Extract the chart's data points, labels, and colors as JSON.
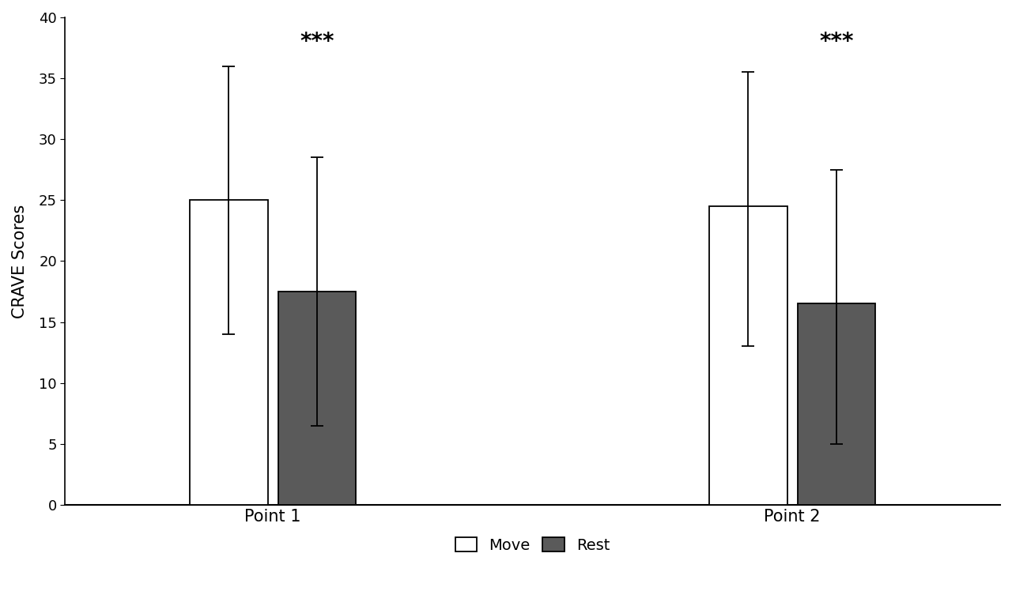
{
  "groups": [
    "Point 1",
    "Point 2"
  ],
  "move_values": [
    25.0,
    24.5
  ],
  "rest_values": [
    17.5,
    16.5
  ],
  "move_err_low": [
    11.0,
    11.5
  ],
  "move_err_high": [
    11.0,
    11.0
  ],
  "rest_err_low": [
    11.0,
    11.5
  ],
  "rest_err_high": [
    11.0,
    11.0
  ],
  "move_color": "#ffffff",
  "rest_color": "#5a5a5a",
  "bar_edge_color": "#000000",
  "bar_width": 0.3,
  "ylim": [
    0,
    40
  ],
  "yticks": [
    0,
    5,
    10,
    15,
    20,
    25,
    30,
    35,
    40
  ],
  "ylabel": "CRAVE Scores",
  "significance_label": "***",
  "sig_fontsize": 20,
  "axis_label_fontsize": 15,
  "tick_fontsize": 13,
  "legend_fontsize": 14,
  "background_color": "#ffffff"
}
